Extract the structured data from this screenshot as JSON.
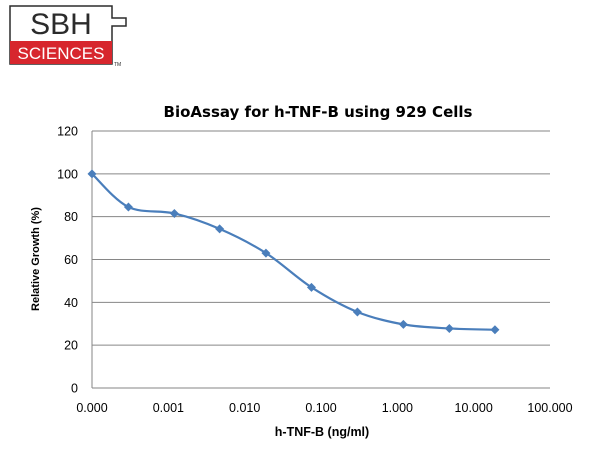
{
  "logo": {
    "line1": "SBH",
    "line2": "SCIENCES",
    "trademark": "TM",
    "colors": {
      "primary": "#d7262d",
      "ink": "#2b2b2b"
    }
  },
  "chart_data": {
    "type": "line",
    "title": "BioAssay for h-TNF-B using 929 Cells",
    "xlabel": "h-TNF-B (ng/ml)",
    "ylabel": "Relative Growth (%)",
    "x_scale": "log",
    "xlim": [
      0.0001,
      100
    ],
    "x_ticks": [
      "0.000",
      "0.001",
      "0.010",
      "0.100",
      "1.000",
      "10.000",
      "100.000"
    ],
    "ylim": [
      0,
      120
    ],
    "y_ticks": [
      "0",
      "20",
      "40",
      "60",
      "80",
      "100",
      "120"
    ],
    "grid": "horizontal",
    "legend": "none",
    "series": [
      {
        "color": "#4a7ebb",
        "marker": "diamond",
        "smooth": true,
        "points": [
          {
            "x": 0.0001,
            "y": 100
          },
          {
            "x": 0.0003,
            "y": 84.5
          },
          {
            "x": 0.0012,
            "y": 81.5
          },
          {
            "x": 0.0047,
            "y": 74.3
          },
          {
            "x": 0.019,
            "y": 63
          },
          {
            "x": 0.075,
            "y": 47
          },
          {
            "x": 0.3,
            "y": 35.5
          },
          {
            "x": 1.2,
            "y": 29.7
          },
          {
            "x": 4.8,
            "y": 27.8
          },
          {
            "x": 19,
            "y": 27.2
          }
        ]
      }
    ]
  }
}
